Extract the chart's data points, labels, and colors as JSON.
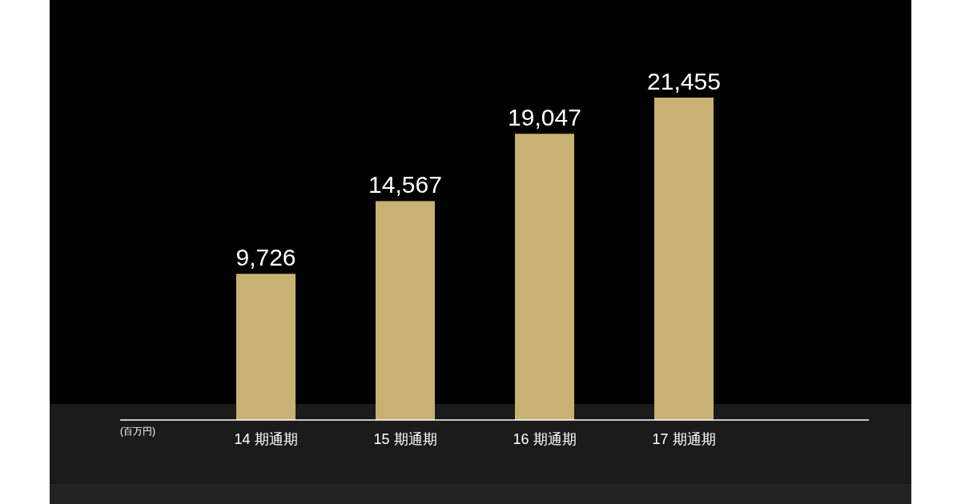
{
  "chart_data": {
    "type": "bar",
    "annotations": [
      "(百万円)"
    ],
    "categories": [
      "14 期通期",
      "15 期通期",
      "16 期通期",
      "17 期通期"
    ],
    "values": [
      9726,
      14567,
      19047,
      21455
    ],
    "value_labels": [
      "9,726",
      "14,567",
      "19,047",
      "21,455"
    ],
    "color": "#c8b273"
  }
}
